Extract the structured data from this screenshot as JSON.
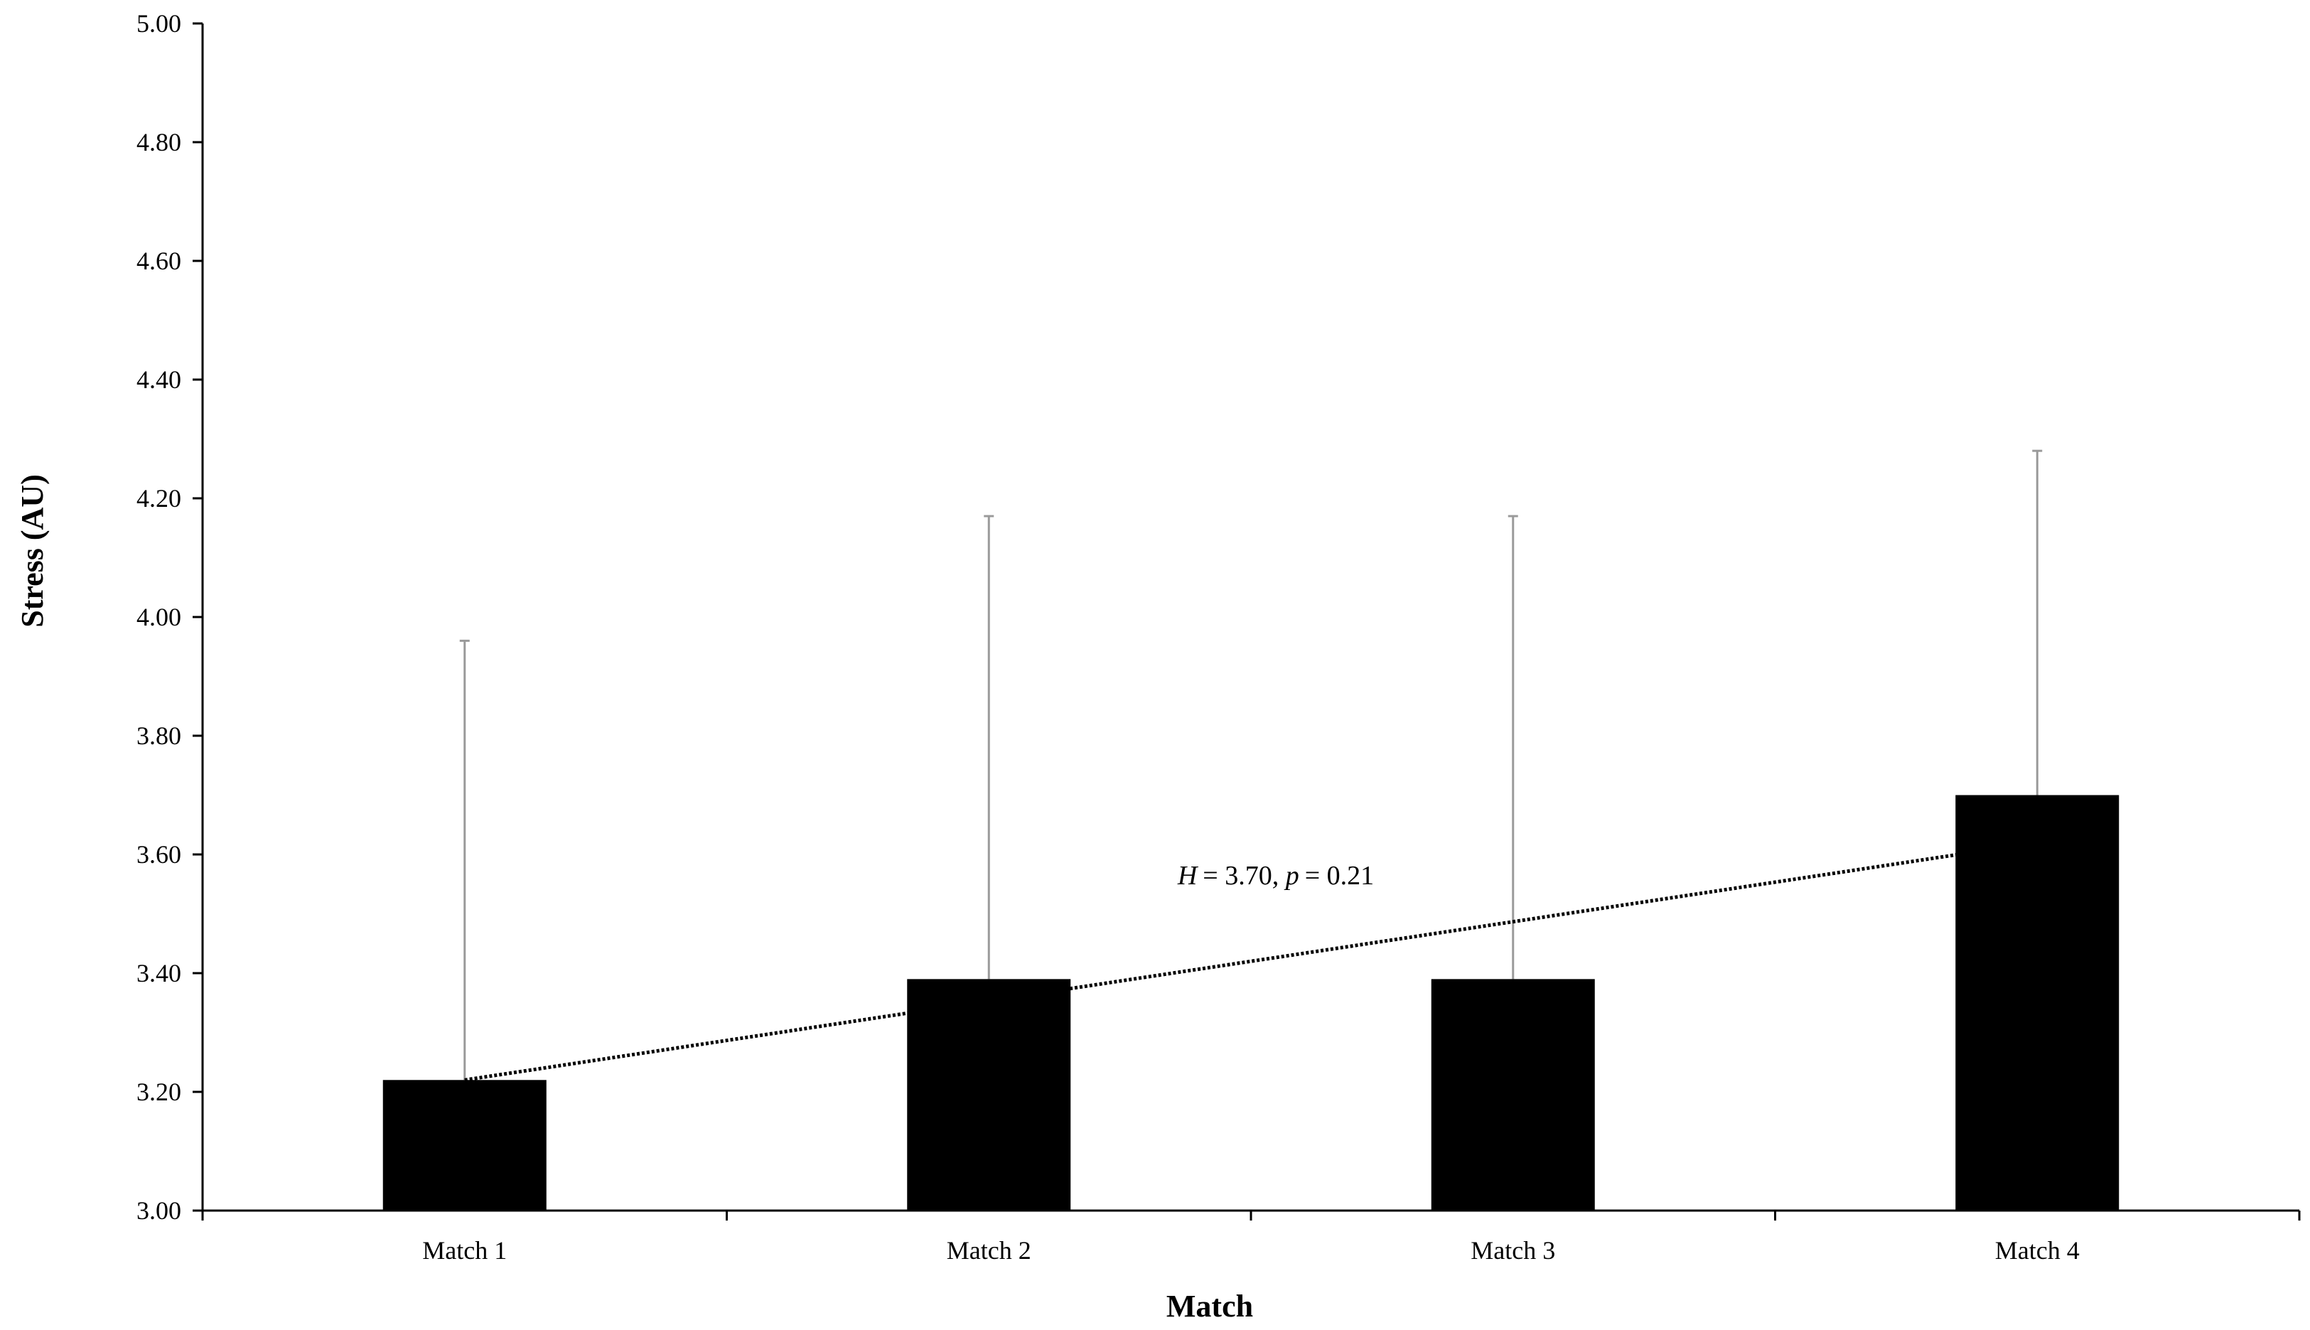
{
  "chart_data": {
    "type": "bar",
    "title": "",
    "xlabel": "Match",
    "ylabel": "Stress (AU)",
    "categories": [
      "Match 1",
      "Match 2",
      "Match 3",
      "Match 4"
    ],
    "values": [
      3.22,
      3.39,
      3.39,
      3.7
    ],
    "error_upper": [
      3.96,
      4.17,
      4.17,
      4.28
    ],
    "ylim": [
      3.0,
      5.0
    ],
    "yticks": [
      "3.00",
      "3.20",
      "3.40",
      "3.60",
      "3.80",
      "4.00",
      "4.20",
      "4.40",
      "4.60",
      "4.80",
      "5.00"
    ],
    "grid": false,
    "legend": "none",
    "trendline": {
      "style": "dotted",
      "start": 3.22,
      "end": 3.62
    },
    "annotation": {
      "H_label": "H",
      "H_value": "= 3.70, ",
      "p_label": "p",
      "p_value": "= 0.21"
    },
    "colors": {
      "bar": "#000000",
      "error_bar": "#9a9a9a",
      "axis": "#000000"
    }
  }
}
